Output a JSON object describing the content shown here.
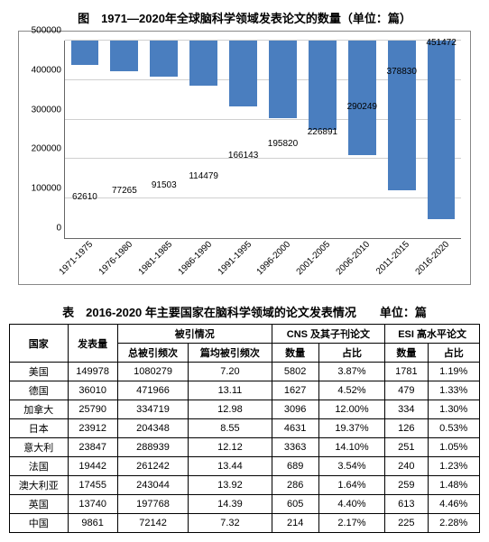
{
  "chart": {
    "type": "bar",
    "title": "图　1971—2020年全球脑科学领域发表论文的数量（单位：篇）",
    "title_fontsize": 13,
    "background_color": "#ffffff",
    "grid_color": "#d0d0d0",
    "axis_color": "#666666",
    "bar_color": "#4a7ebf",
    "bar_width_ratio": 0.7,
    "label_fontsize": 10,
    "ylim": [
      0,
      500000
    ],
    "yticks": [
      0,
      100000,
      200000,
      300000,
      400000,
      500000
    ],
    "categories": [
      "1971-1975",
      "1976-1980",
      "1981-1985",
      "1986-1990",
      "1991-1995",
      "1996-2000",
      "2001-2005",
      "2006-2010",
      "2011-2015",
      "2016-2020"
    ],
    "values": [
      62610,
      77265,
      91503,
      114479,
      166143,
      195820,
      226891,
      290249,
      378830,
      451472
    ]
  },
  "table": {
    "title": "表　2016-2020 年主要国家在脑科学领域的论文发表情况　　单位：篇",
    "header1": {
      "country": "国家",
      "pub": "发表量",
      "cite": "被引情况",
      "cns": "CNS 及其子刊论文",
      "esi": "ESI 高水平论文"
    },
    "header2": {
      "cite_total": "总被引频次",
      "cite_avg": "篇均被引频次",
      "cns_n": "数量",
      "cns_p": "占比",
      "esi_n": "数量",
      "esi_p": "占比"
    },
    "rows": [
      {
        "c": "美国",
        "pub": "149978",
        "ct": "1080279",
        "ca": "7.20",
        "cn": "5802",
        "cp": "3.87%",
        "en": "1781",
        "ep": "1.19%"
      },
      {
        "c": "德国",
        "pub": "36010",
        "ct": "471966",
        "ca": "13.11",
        "cn": "1627",
        "cp": "4.52%",
        "en": "479",
        "ep": "1.33%"
      },
      {
        "c": "加拿大",
        "pub": "25790",
        "ct": "334719",
        "ca": "12.98",
        "cn": "3096",
        "cp": "12.00%",
        "en": "334",
        "ep": "1.30%"
      },
      {
        "c": "日本",
        "pub": "23912",
        "ct": "204348",
        "ca": "8.55",
        "cn": "4631",
        "cp": "19.37%",
        "en": "126",
        "ep": "0.53%"
      },
      {
        "c": "意大利",
        "pub": "23847",
        "ct": "288939",
        "ca": "12.12",
        "cn": "3363",
        "cp": "14.10%",
        "en": "251",
        "ep": "1.05%"
      },
      {
        "c": "法国",
        "pub": "19442",
        "ct": "261242",
        "ca": "13.44",
        "cn": "689",
        "cp": "3.54%",
        "en": "240",
        "ep": "1.23%"
      },
      {
        "c": "澳大利亚",
        "pub": "17455",
        "ct": "243044",
        "ca": "13.92",
        "cn": "286",
        "cp": "1.64%",
        "en": "259",
        "ep": "1.48%"
      },
      {
        "c": "英国",
        "pub": "13740",
        "ct": "197768",
        "ca": "14.39",
        "cn": "605",
        "cp": "4.40%",
        "en": "613",
        "ep": "4.46%"
      },
      {
        "c": "中国",
        "pub": "9861",
        "ct": "72142",
        "ca": "7.32",
        "cn": "214",
        "cp": "2.17%",
        "en": "225",
        "ep": "2.28%"
      }
    ]
  }
}
